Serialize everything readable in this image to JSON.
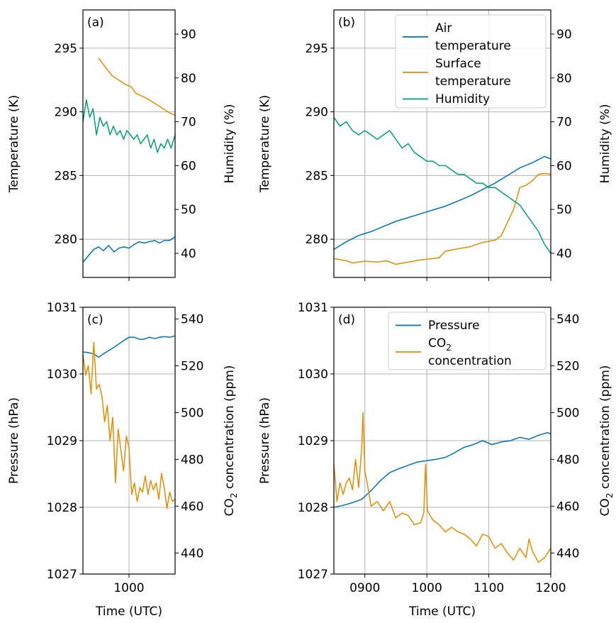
{
  "chart_data": [
    {
      "panel": "(a)",
      "type": "line",
      "xlabel": "",
      "ylabel_left": "Temperature (K)",
      "ylabel_right": "Humidity (%)",
      "xlim": [
        932,
        1068
      ],
      "ylim_left": [
        277,
        298
      ],
      "ylim_right": [
        34.5,
        95.5
      ],
      "x_ticks": [],
      "y_ticks_left": [
        280,
        285,
        290,
        295
      ],
      "y_ticks_right": [
        40,
        50,
        60,
        70,
        80,
        90
      ],
      "grid": true,
      "series": [
        {
          "name": "Air temperature",
          "axis": "left",
          "color": "#0173b2",
          "x": [
            932,
            940,
            948,
            955,
            962,
            970,
            978,
            985,
            992,
            1000,
            1008,
            1015,
            1022,
            1030,
            1038,
            1045,
            1052,
            1060,
            1068
          ],
          "y": [
            278.2,
            278.7,
            279.2,
            279.4,
            279.1,
            279.5,
            279.0,
            279.3,
            279.4,
            279.3,
            279.6,
            279.8,
            279.7,
            279.8,
            279.9,
            279.7,
            279.9,
            279.9,
            280.2
          ]
        },
        {
          "name": "Surface temperature",
          "axis": "right",
          "color": "#de8f05",
          "x": [
            955,
            965,
            975,
            985,
            995,
            1003,
            1010,
            1020,
            1030,
            1040,
            1050,
            1060,
            1068
          ],
          "y": [
            84.5,
            82.5,
            80.5,
            79.5,
            78.5,
            78.0,
            76.5,
            75.8,
            75.0,
            74.0,
            73.0,
            72.0,
            71.5
          ]
        },
        {
          "name": "Humidity",
          "axis": "right",
          "color": "#029e73",
          "x": [
            932,
            937,
            942,
            947,
            952,
            957,
            962,
            967,
            972,
            977,
            982,
            987,
            992,
            997,
            1002,
            1007,
            1012,
            1017,
            1022,
            1027,
            1032,
            1037,
            1042,
            1047,
            1052,
            1057,
            1062,
            1068
          ],
          "y": [
            70,
            75,
            71,
            73,
            67,
            71,
            69,
            70,
            67,
            69,
            67,
            68,
            66,
            68,
            67,
            66,
            67,
            65,
            66,
            67,
            64,
            66,
            63,
            65,
            64,
            66,
            64,
            67
          ]
        }
      ]
    },
    {
      "panel": "(b)",
      "type": "line",
      "xlabel": "",
      "ylabel_left": "Temperature (K)",
      "ylabel_right": "Humidity (%)",
      "xlim": [
        850,
        1200
      ],
      "ylim_left": [
        277,
        298
      ],
      "ylim_right": [
        34.5,
        95.5
      ],
      "x_ticks": [],
      "y_ticks_left": [
        280,
        285,
        290,
        295
      ],
      "y_ticks_right": [
        40,
        50,
        60,
        70,
        80,
        90
      ],
      "grid": true,
      "legend_position": "top-right",
      "legend": [
        "Air\ntemperature",
        "Surface\ntemperature",
        "Humidity"
      ],
      "series": [
        {
          "name": "Air temperature",
          "axis": "left",
          "color": "#0173b2",
          "x": [
            850,
            870,
            890,
            910,
            930,
            950,
            970,
            990,
            1010,
            1030,
            1050,
            1070,
            1090,
            1110,
            1130,
            1150,
            1170,
            1190,
            1200
          ],
          "y": [
            279.2,
            279.8,
            280.3,
            280.6,
            281.0,
            281.4,
            281.7,
            282.0,
            282.3,
            282.6,
            283.0,
            283.4,
            283.9,
            284.4,
            285.0,
            285.6,
            286.0,
            286.5,
            286.3
          ]
        },
        {
          "name": "Surface temperature",
          "axis": "right",
          "color": "#de8f05",
          "x": [
            850,
            870,
            880,
            900,
            920,
            935,
            950,
            970,
            990,
            1010,
            1020,
            1030,
            1050,
            1070,
            1090,
            1110,
            1120,
            1130,
            1140,
            1150,
            1160,
            1170,
            1180,
            1190,
            1200
          ],
          "y": [
            38.8,
            38.3,
            37.8,
            38.2,
            38.0,
            38.3,
            37.5,
            38.0,
            38.5,
            38.8,
            39.0,
            40.5,
            41.0,
            41.5,
            42.5,
            43.0,
            44.0,
            47.0,
            50.0,
            55.0,
            55.5,
            56.5,
            58.0,
            58.2,
            58.0
          ]
        },
        {
          "name": "Humidity",
          "axis": "right",
          "color": "#029e73",
          "x": [
            850,
            860,
            870,
            880,
            890,
            900,
            910,
            920,
            930,
            940,
            950,
            960,
            970,
            980,
            990,
            1000,
            1010,
            1020,
            1030,
            1040,
            1050,
            1060,
            1070,
            1080,
            1090,
            1100,
            1110,
            1120,
            1130,
            1140,
            1150,
            1160,
            1170,
            1180,
            1190,
            1200
          ],
          "y": [
            71,
            69,
            70,
            68,
            67,
            68,
            67,
            66,
            67,
            68,
            66,
            64,
            65,
            63,
            62,
            61,
            61,
            60,
            60,
            59,
            58,
            58,
            57,
            56,
            56,
            55,
            55,
            54,
            53,
            52,
            51,
            49,
            47,
            45,
            42,
            40
          ]
        }
      ]
    },
    {
      "panel": "(c)",
      "type": "line",
      "xlabel": "Time (UTC)",
      "ylabel_left": "Pressure (hPa)",
      "ylabel_right": "CO2 concentration (ppm)",
      "xlim": [
        932,
        1068
      ],
      "ylim_left": [
        1027,
        1031
      ],
      "ylim_right": [
        431,
        545
      ],
      "x_ticks": [
        "1000"
      ],
      "y_ticks_left": [
        1027,
        1028,
        1029,
        1030,
        1031
      ],
      "y_ticks_right": [
        440,
        460,
        480,
        500,
        520,
        540
      ],
      "grid": true,
      "series": [
        {
          "name": "Pressure",
          "axis": "left",
          "color": "#0173b2",
          "x": [
            932,
            940,
            948,
            955,
            962,
            970,
            978,
            985,
            992,
            1000,
            1008,
            1015,
            1022,
            1030,
            1038,
            1045,
            1052,
            1060,
            1068
          ],
          "y": [
            1030.33,
            1030.32,
            1030.3,
            1030.25,
            1030.3,
            1030.35,
            1030.4,
            1030.45,
            1030.5,
            1030.55,
            1030.55,
            1030.52,
            1030.52,
            1030.55,
            1030.53,
            1030.55,
            1030.56,
            1030.55,
            1030.57
          ]
        },
        {
          "name": "CO2 concentration",
          "axis": "right",
          "color": "#de8f05",
          "x": [
            932,
            936,
            940,
            944,
            948,
            952,
            956,
            960,
            964,
            968,
            972,
            976,
            980,
            984,
            988,
            992,
            996,
            1000,
            1004,
            1008,
            1012,
            1016,
            1020,
            1024,
            1028,
            1032,
            1036,
            1040,
            1044,
            1048,
            1052,
            1056,
            1060,
            1064,
            1068
          ],
          "y": [
            525,
            516,
            520,
            508,
            530,
            510,
            512,
            507,
            496,
            503,
            488,
            498,
            470,
            493,
            484,
            475,
            490,
            485,
            465,
            470,
            462,
            468,
            466,
            473,
            465,
            471,
            467,
            470,
            463,
            474,
            468,
            459,
            466,
            462,
            463
          ]
        }
      ]
    },
    {
      "panel": "(d)",
      "type": "line",
      "xlabel": "Time (UTC)",
      "ylabel_left": "Pressure (hPa)",
      "ylabel_right": "CO2 concentration (ppm)",
      "xlim": [
        850,
        1200
      ],
      "ylim_left": [
        1027,
        1031
      ],
      "ylim_right": [
        431,
        545
      ],
      "x_ticks": [
        "0900",
        "1000",
        "1100",
        "1200"
      ],
      "y_ticks_left": [
        1027,
        1028,
        1029,
        1030,
        1031
      ],
      "y_ticks_right": [
        440,
        460,
        480,
        500,
        520,
        540
      ],
      "grid": true,
      "legend_position": "top-right",
      "legend": [
        "Pressure",
        "CO2\nconcentration"
      ],
      "series": [
        {
          "name": "Pressure",
          "axis": "left",
          "color": "#0173b2",
          "x": [
            850,
            865,
            880,
            895,
            910,
            925,
            940,
            955,
            970,
            985,
            1000,
            1015,
            1030,
            1045,
            1060,
            1075,
            1090,
            1105,
            1120,
            1135,
            1150,
            1165,
            1180,
            1195,
            1200
          ],
          "y": [
            1028.0,
            1028.03,
            1028.07,
            1028.12,
            1028.25,
            1028.4,
            1028.52,
            1028.58,
            1028.63,
            1028.68,
            1028.7,
            1028.72,
            1028.75,
            1028.82,
            1028.9,
            1028.94,
            1029.0,
            1028.94,
            1028.98,
            1029.0,
            1029.05,
            1029.02,
            1029.08,
            1029.12,
            1029.1
          ]
        },
        {
          "name": "CO2 concentration",
          "axis": "right",
          "color": "#de8f05",
          "x": [
            850,
            855,
            860,
            865,
            870,
            875,
            880,
            885,
            890,
            895,
            897,
            900,
            905,
            910,
            920,
            930,
            940,
            950,
            960,
            970,
            980,
            990,
            995,
            998,
            1001,
            1010,
            1020,
            1030,
            1040,
            1050,
            1060,
            1070,
            1080,
            1090,
            1100,
            1110,
            1120,
            1130,
            1140,
            1150,
            1160,
            1165,
            1170,
            1180,
            1190,
            1200
          ],
          "y": [
            478,
            462,
            470,
            465,
            470,
            472,
            467,
            480,
            468,
            485,
            500,
            475,
            468,
            460,
            462,
            458,
            462,
            455,
            457,
            456,
            452,
            453,
            457,
            478,
            458,
            454,
            452,
            449,
            451,
            449,
            448,
            446,
            443,
            448,
            447,
            442,
            444,
            440,
            437,
            442,
            438,
            446,
            441,
            436,
            438,
            442
          ]
        }
      ]
    }
  ]
}
